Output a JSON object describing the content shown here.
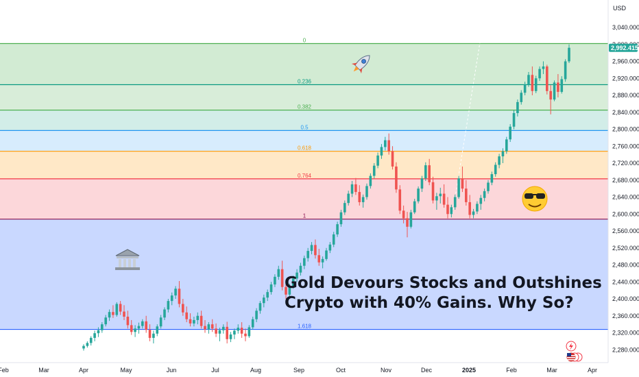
{
  "currency": "USD",
  "headline": {
    "line1": "Gold Devours Stocks and Outshines",
    "line2": "Crypto with 40% Gains. Why So?"
  },
  "price_badge": "2,992.415",
  "colors": {
    "up": "#26a69a",
    "down": "#ef5350",
    "badge": "#26a69a"
  },
  "icons": [
    "rocket-icon",
    "sunglasses-face-icon",
    "bank-building-icon",
    "lightning-icon",
    "us-flag-icon"
  ],
  "chart_data": {
    "type": "candlestick",
    "y_axis": {
      "ylim": [
        2260,
        3060
      ],
      "ticks": [
        3040,
        3000,
        2960,
        2920,
        2880,
        2840,
        2800,
        2760,
        2720,
        2680,
        2640,
        2600,
        2560,
        2520,
        2480,
        2440,
        2400,
        2360,
        2320,
        2280
      ],
      "tick_labels": [
        "3,040.000",
        "3,000.000",
        "2,960.000",
        "2,920.000",
        "2,880.000",
        "2,840.000",
        "2,800.000",
        "2,760.000",
        "2,720.000",
        "2,680.000",
        "2,640.000",
        "2,600.000",
        "2,560.000",
        "2,520.000",
        "2,480.000",
        "2,440.000",
        "2,400.000",
        "2,360.000",
        "2,320.000",
        "2,280.000"
      ],
      "position": "right"
    },
    "x_axis": {
      "labels": [
        "Feb",
        "Mar",
        "Apr",
        "May",
        "Jun",
        "Jul",
        "Aug",
        "Sep",
        "Oct",
        "Nov",
        "Dec",
        "2025",
        "Feb",
        "Mar",
        "Apr"
      ]
    },
    "fibonacci": [
      {
        "level": "0",
        "price": 3002,
        "color": "#4caf50"
      },
      {
        "level": "0.236",
        "price": 2905,
        "color": "#089981"
      },
      {
        "level": "0.382",
        "price": 2845,
        "color": "#4caf50"
      },
      {
        "level": "0.5",
        "price": 2797,
        "color": "#2196f3"
      },
      {
        "level": "0.618",
        "price": 2748,
        "color": "#ff9800"
      },
      {
        "level": "0.764",
        "price": 2683,
        "color": "#f23645"
      },
      {
        "level": "1",
        "price": 2588,
        "color": "#880e4f"
      },
      {
        "level": "1.618",
        "price": 2328,
        "color": "#2962ff"
      }
    ],
    "series": [
      {
        "type": "candles",
        "values": [
          [
            2283,
            2293,
            2278,
            2289
          ],
          [
            2289,
            2300,
            2285,
            2296
          ],
          [
            2296,
            2312,
            2290,
            2308
          ],
          [
            2308,
            2325,
            2300,
            2319
          ],
          [
            2319,
            2333,
            2310,
            2326
          ],
          [
            2326,
            2345,
            2320,
            2340
          ],
          [
            2340,
            2362,
            2335,
            2356
          ],
          [
            2356,
            2375,
            2348,
            2369
          ],
          [
            2369,
            2385,
            2355,
            2362
          ],
          [
            2362,
            2392,
            2358,
            2388
          ],
          [
            2388,
            2395,
            2362,
            2370
          ],
          [
            2370,
            2385,
            2350,
            2358
          ],
          [
            2358,
            2372,
            2330,
            2338
          ],
          [
            2338,
            2350,
            2315,
            2322
          ],
          [
            2322,
            2338,
            2310,
            2330
          ],
          [
            2330,
            2344,
            2318,
            2336
          ],
          [
            2336,
            2352,
            2330,
            2347
          ],
          [
            2347,
            2360,
            2320,
            2327
          ],
          [
            2327,
            2340,
            2300,
            2308
          ],
          [
            2308,
            2325,
            2295,
            2318
          ],
          [
            2318,
            2340,
            2312,
            2335
          ],
          [
            2335,
            2362,
            2330,
            2356
          ],
          [
            2356,
            2380,
            2350,
            2375
          ],
          [
            2375,
            2400,
            2368,
            2395
          ],
          [
            2395,
            2415,
            2385,
            2408
          ],
          [
            2408,
            2430,
            2400,
            2424
          ],
          [
            2424,
            2442,
            2380,
            2388
          ],
          [
            2388,
            2400,
            2360,
            2368
          ],
          [
            2368,
            2382,
            2345,
            2352
          ],
          [
            2352,
            2366,
            2335,
            2342
          ],
          [
            2342,
            2358,
            2335,
            2350
          ],
          [
            2350,
            2368,
            2340,
            2360
          ],
          [
            2360,
            2372,
            2330,
            2336
          ],
          [
            2336,
            2350,
            2320,
            2328
          ],
          [
            2328,
            2345,
            2318,
            2340
          ],
          [
            2340,
            2352,
            2322,
            2330
          ],
          [
            2330,
            2342,
            2310,
            2318
          ],
          [
            2318,
            2332,
            2300,
            2326
          ],
          [
            2326,
            2340,
            2318,
            2334
          ],
          [
            2334,
            2346,
            2295,
            2305
          ],
          [
            2305,
            2322,
            2298,
            2316
          ],
          [
            2316,
            2330,
            2305,
            2325
          ],
          [
            2325,
            2340,
            2318,
            2332
          ],
          [
            2332,
            2345,
            2308,
            2318
          ],
          [
            2318,
            2330,
            2300,
            2312
          ],
          [
            2312,
            2338,
            2308,
            2333
          ],
          [
            2333,
            2358,
            2328,
            2352
          ],
          [
            2352,
            2378,
            2345,
            2372
          ],
          [
            2372,
            2395,
            2365,
            2390
          ],
          [
            2390,
            2410,
            2380,
            2403
          ],
          [
            2403,
            2422,
            2395,
            2416
          ],
          [
            2416,
            2440,
            2410,
            2434
          ],
          [
            2434,
            2458,
            2428,
            2452
          ],
          [
            2452,
            2478,
            2445,
            2470
          ],
          [
            2470,
            2490,
            2420,
            2428
          ],
          [
            2428,
            2445,
            2400,
            2410
          ],
          [
            2410,
            2436,
            2404,
            2430
          ],
          [
            2430,
            2455,
            2424,
            2448
          ],
          [
            2448,
            2470,
            2440,
            2462
          ],
          [
            2462,
            2485,
            2455,
            2478
          ],
          [
            2478,
            2502,
            2470,
            2496
          ],
          [
            2496,
            2520,
            2488,
            2513
          ],
          [
            2513,
            2534,
            2505,
            2527
          ],
          [
            2527,
            2540,
            2495,
            2503
          ],
          [
            2503,
            2518,
            2478,
            2486
          ],
          [
            2486,
            2500,
            2472,
            2494
          ],
          [
            2494,
            2520,
            2490,
            2514
          ],
          [
            2514,
            2534,
            2508,
            2528
          ],
          [
            2528,
            2558,
            2522,
            2552
          ],
          [
            2552,
            2582,
            2546,
            2576
          ],
          [
            2576,
            2610,
            2570,
            2604
          ],
          [
            2604,
            2632,
            2598,
            2626
          ],
          [
            2626,
            2655,
            2620,
            2648
          ],
          [
            2648,
            2678,
            2640,
            2670
          ],
          [
            2670,
            2685,
            2645,
            2652
          ],
          [
            2652,
            2668,
            2620,
            2628
          ],
          [
            2628,
            2646,
            2615,
            2640
          ],
          [
            2640,
            2672,
            2634,
            2666
          ],
          [
            2666,
            2696,
            2660,
            2690
          ],
          [
            2690,
            2720,
            2684,
            2714
          ],
          [
            2714,
            2745,
            2708,
            2738
          ],
          [
            2738,
            2765,
            2730,
            2758
          ],
          [
            2758,
            2782,
            2750,
            2774
          ],
          [
            2774,
            2790,
            2740,
            2748
          ],
          [
            2748,
            2760,
            2705,
            2712
          ],
          [
            2712,
            2722,
            2650,
            2658
          ],
          [
            2658,
            2668,
            2600,
            2608
          ],
          [
            2608,
            2620,
            2578,
            2590
          ],
          [
            2590,
            2605,
            2545,
            2570
          ],
          [
            2570,
            2610,
            2566,
            2604
          ],
          [
            2604,
            2636,
            2600,
            2630
          ],
          [
            2630,
            2665,
            2625,
            2660
          ],
          [
            2660,
            2690,
            2652,
            2684
          ],
          [
            2684,
            2722,
            2678,
            2715
          ],
          [
            2715,
            2730,
            2668,
            2675
          ],
          [
            2675,
            2688,
            2625,
            2632
          ],
          [
            2632,
            2650,
            2610,
            2642
          ],
          [
            2642,
            2662,
            2625,
            2648
          ],
          [
            2648,
            2670,
            2615,
            2622
          ],
          [
            2622,
            2640,
            2590,
            2600
          ],
          [
            2600,
            2622,
            2592,
            2616
          ],
          [
            2616,
            2646,
            2610,
            2640
          ],
          [
            2640,
            2690,
            2636,
            2684
          ],
          [
            2684,
            2712,
            2652,
            2660
          ],
          [
            2660,
            2680,
            2620,
            2628
          ],
          [
            2628,
            2645,
            2590,
            2598
          ],
          [
            2598,
            2612,
            2590,
            2606
          ],
          [
            2606,
            2630,
            2600,
            2624
          ],
          [
            2624,
            2645,
            2610,
            2638
          ],
          [
            2638,
            2660,
            2630,
            2654
          ],
          [
            2654,
            2680,
            2648,
            2674
          ],
          [
            2674,
            2700,
            2668,
            2694
          ],
          [
            2694,
            2722,
            2688,
            2716
          ],
          [
            2716,
            2742,
            2708,
            2736
          ],
          [
            2736,
            2755,
            2720,
            2748
          ],
          [
            2748,
            2782,
            2742,
            2776
          ],
          [
            2776,
            2812,
            2770,
            2806
          ],
          [
            2806,
            2845,
            2800,
            2838
          ],
          [
            2838,
            2870,
            2830,
            2864
          ],
          [
            2864,
            2892,
            2858,
            2886
          ],
          [
            2886,
            2912,
            2880,
            2906
          ],
          [
            2906,
            2935,
            2900,
            2928
          ],
          [
            2928,
            2948,
            2880,
            2890
          ],
          [
            2890,
            2926,
            2885,
            2920
          ],
          [
            2920,
            2948,
            2914,
            2942
          ],
          [
            2942,
            2960,
            2930,
            2948
          ],
          [
            2948,
            2952,
            2882,
            2890
          ],
          [
            2890,
            2904,
            2835,
            2870
          ],
          [
            2870,
            2915,
            2866,
            2910
          ],
          [
            2910,
            2930,
            2875,
            2888
          ],
          [
            2888,
            2925,
            2884,
            2918
          ],
          [
            2918,
            2965,
            2912,
            2960
          ],
          [
            2960,
            3000,
            2956,
            2992
          ]
        ]
      }
    ]
  }
}
